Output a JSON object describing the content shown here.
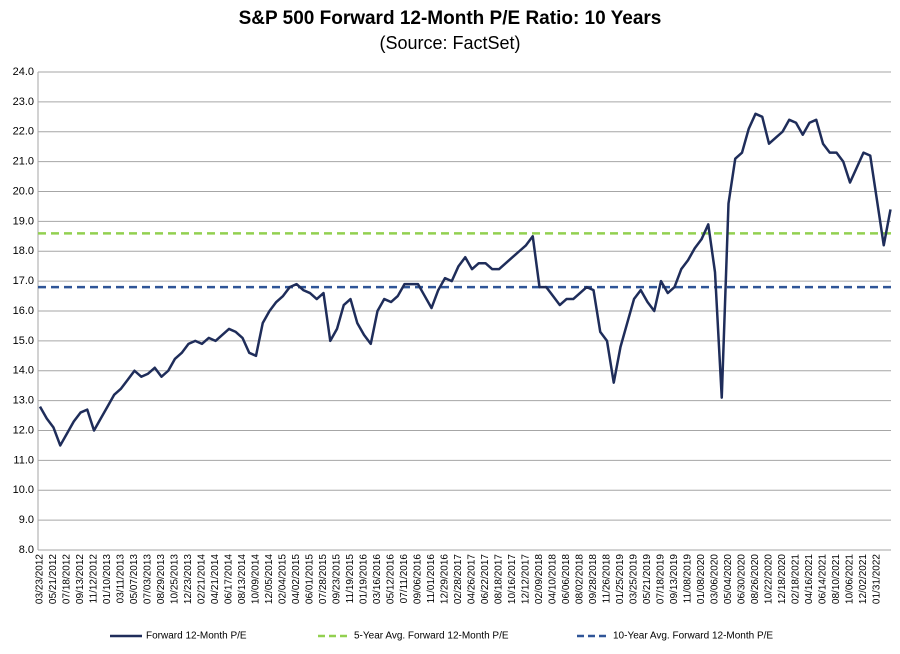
{
  "chart_data": {
    "type": "line",
    "title": "S&P 500 Forward 12-Month P/E Ratio: 10 Years",
    "subtitle": "(Source: FactSet)",
    "categories": [
      "03/23/2012",
      null,
      "05/21/2012",
      null,
      "07/18/2012",
      null,
      "09/13/2012",
      null,
      "11/12/2012",
      null,
      "01/10/2013",
      null,
      "03/11/2013",
      null,
      "05/07/2013",
      null,
      "07/03/2013",
      null,
      "08/29/2013",
      null,
      "10/25/2013",
      null,
      "12/23/2013",
      null,
      "02/21/2014",
      null,
      "04/21/2014",
      null,
      "06/17/2014",
      null,
      "08/13/2014",
      null,
      "10/09/2014",
      null,
      "12/05/2014",
      null,
      "02/04/2015",
      null,
      "04/02/2015",
      null,
      "06/01/2015",
      null,
      "07/28/2015",
      null,
      "09/23/2015",
      null,
      "11/19/2015",
      null,
      "01/19/2016",
      null,
      "03/16/2016",
      null,
      "05/12/2016",
      null,
      "07/11/2016",
      null,
      "09/06/2016",
      null,
      "11/01/2016",
      null,
      "12/29/2016",
      null,
      "02/28/2017",
      null,
      "04/26/2017",
      null,
      "06/22/2017",
      null,
      "08/18/2017",
      null,
      "10/16/2017",
      null,
      "12/12/2017",
      null,
      "02/09/2018",
      null,
      "04/10/2018",
      null,
      "06/06/2018",
      null,
      "08/02/2018",
      null,
      "09/28/2018",
      null,
      "11/26/2018",
      null,
      "01/25/2019",
      null,
      "03/25/2019",
      null,
      "05/21/2019",
      null,
      "07/18/2019",
      null,
      "09/13/2019",
      null,
      "11/08/2019",
      null,
      "01/08/2020",
      null,
      "03/06/2020",
      null,
      "05/04/2020",
      null,
      "06/30/2020",
      null,
      "08/26/2020",
      null,
      "10/22/2020",
      null,
      "12/18/2020",
      null,
      "02/18/2021",
      null,
      "04/16/2021",
      null,
      "06/14/2021",
      null,
      "08/10/2021",
      null,
      "10/06/2021",
      null,
      "12/02/2021",
      null,
      "01/31/2022",
      null,
      null
    ],
    "series": [
      {
        "name": "Forward 12-Month P/E",
        "color": "#1f2d5a",
        "values": [
          12.8,
          12.4,
          12.1,
          11.5,
          11.9,
          12.3,
          12.6,
          12.7,
          12.0,
          12.4,
          12.8,
          13.2,
          13.4,
          13.7,
          14.0,
          13.8,
          13.9,
          14.1,
          13.8,
          14.0,
          14.4,
          14.6,
          14.9,
          15.0,
          14.9,
          15.1,
          15.0,
          15.2,
          15.4,
          15.3,
          15.1,
          14.6,
          14.5,
          15.6,
          16.0,
          16.3,
          16.5,
          16.8,
          16.9,
          16.7,
          16.6,
          16.4,
          16.6,
          15.0,
          15.4,
          16.2,
          16.4,
          15.6,
          15.2,
          14.9,
          16.0,
          16.4,
          16.3,
          16.5,
          16.9,
          16.9,
          16.9,
          16.5,
          16.1,
          16.7,
          17.1,
          17.0,
          17.5,
          17.8,
          17.4,
          17.6,
          17.6,
          17.4,
          17.4,
          17.6,
          17.8,
          18.0,
          18.2,
          18.5,
          16.8,
          16.8,
          16.5,
          16.2,
          16.4,
          16.4,
          16.6,
          16.8,
          16.7,
          15.3,
          15.0,
          13.6,
          14.8,
          15.6,
          16.4,
          16.7,
          16.3,
          16.0,
          17.0,
          16.6,
          16.8,
          17.4,
          17.7,
          18.1,
          18.4,
          18.9,
          17.3,
          13.1,
          19.6,
          21.1,
          21.3,
          22.1,
          22.6,
          22.5,
          21.6,
          21.8,
          22.0,
          22.4,
          22.3,
          21.9,
          22.3,
          22.4,
          21.6,
          21.3,
          21.3,
          21.0,
          20.3,
          20.8,
          21.3,
          21.2,
          19.7,
          18.2,
          19.4
        ]
      }
    ],
    "reference_lines": [
      {
        "name": "5-Year Avg. Forward 12-Month P/E",
        "value": 18.6,
        "color": "#92d050"
      },
      {
        "name": "10-Year Avg. Forward 12-Month P/E",
        "value": 16.8,
        "color": "#2f5597"
      }
    ],
    "ylim": [
      8,
      24
    ],
    "yticks": [
      {
        "value": 8,
        "label": "8.0"
      },
      {
        "value": 9,
        "label": "9.0"
      },
      {
        "value": 10,
        "label": "10.0"
      },
      {
        "value": 11,
        "label": "11.0"
      },
      {
        "value": 12,
        "label": "12.0"
      },
      {
        "value": 13,
        "label": "13.0"
      },
      {
        "value": 14,
        "label": "14.0"
      },
      {
        "value": 15,
        "label": "15.0"
      },
      {
        "value": 16,
        "label": "16.0"
      },
      {
        "value": 17,
        "label": "17.0"
      },
      {
        "value": 18,
        "label": "18.0"
      },
      {
        "value": 19,
        "label": "19.0"
      },
      {
        "value": 20,
        "label": "20.0"
      },
      {
        "value": 21,
        "label": "21.0"
      },
      {
        "value": 22,
        "label": "22.0"
      },
      {
        "value": 23,
        "label": "23.0"
      },
      {
        "value": 24,
        "label": "24.0"
      }
    ],
    "grid": true,
    "legend": "bottom"
  }
}
